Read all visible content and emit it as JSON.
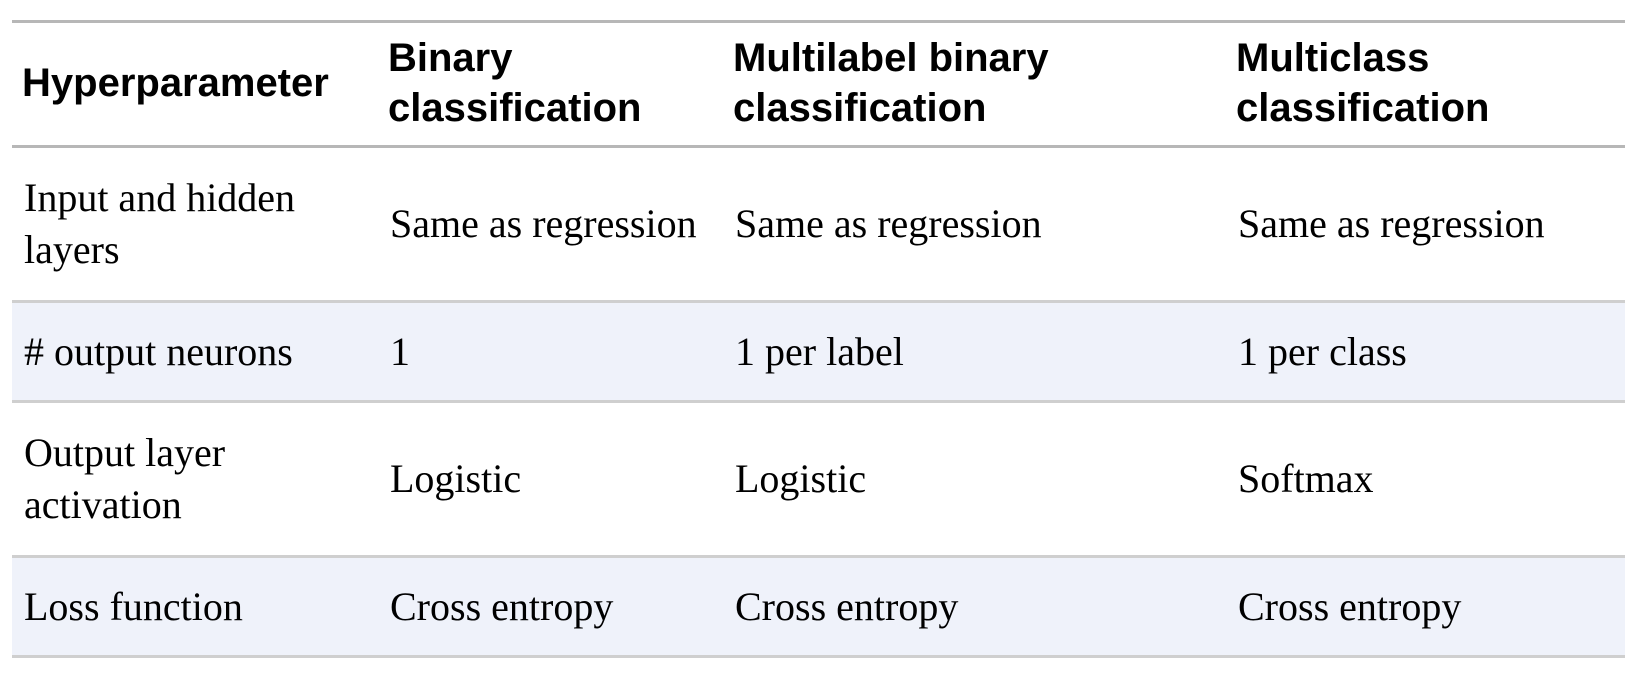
{
  "table": {
    "headers": [
      "Hyperparameter",
      "Binary classification",
      "Multilabel binary classification",
      "Multiclass classification"
    ],
    "rows": [
      [
        "Input and hidden layers",
        "Same as regression",
        "Same as regression",
        "Same as regression"
      ],
      [
        "# output neurons",
        "1",
        "1 per label",
        "1 per class"
      ],
      [
        "Output layer activation",
        "Logistic",
        "Logistic",
        "Softmax"
      ],
      [
        "Loss function",
        "Cross entropy",
        "Cross entropy",
        "Cross entropy"
      ]
    ],
    "colors": {
      "shaded_row": "#eff2fa",
      "header_rule": "#b7b7b7",
      "row_rule": "#cfcfcf"
    }
  }
}
